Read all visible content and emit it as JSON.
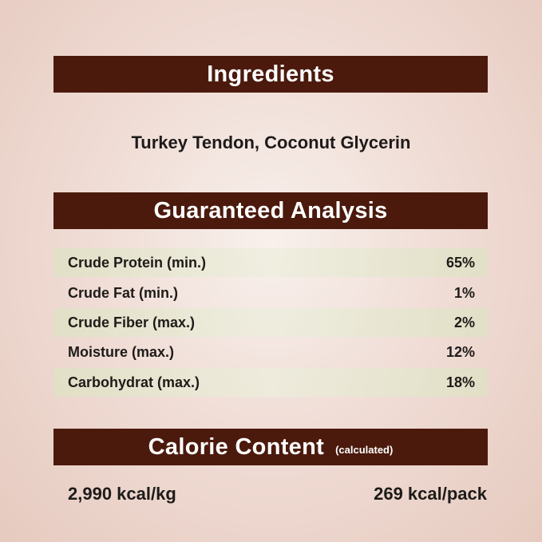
{
  "ingredients": {
    "title": "Ingredients",
    "text": "Turkey Tendon, Coconut Glycerin"
  },
  "analysis": {
    "title": "Guaranteed Analysis",
    "rows": [
      {
        "label": "Crude Protein (min.)",
        "value": "65%"
      },
      {
        "label": "Crude Fat (min.)",
        "value": "1%"
      },
      {
        "label": "Crude Fiber (max.)",
        "value": "2%"
      },
      {
        "label": "Moisture (max.)",
        "value": "12%"
      },
      {
        "label": "Carbohydrat (max.)",
        "value": "18%"
      }
    ]
  },
  "calorie": {
    "title": "Calorie Content",
    "subtitle": "(calculated)",
    "per_kg": "2,990 kcal/kg",
    "per_pack": "269 kcal/pack"
  },
  "colors": {
    "banner": "#4b1a0d",
    "stripe": "#dee2c4",
    "background": "#f0ddd6"
  }
}
